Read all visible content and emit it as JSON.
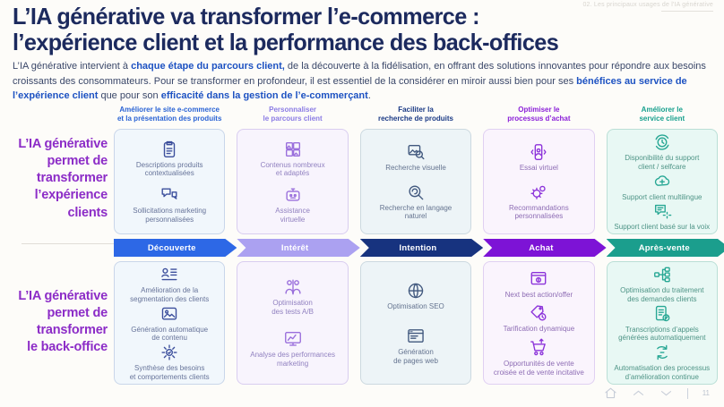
{
  "meta": {
    "header_note": "02. Les principaux usages de l'IA générative"
  },
  "title": "L’IA générative va transformer l’e-commerce :\nl’expérience client et la performance des back-offices",
  "intro": {
    "s1": "L’IA générative intervient à ",
    "b1": "chaque étape du parcours client,",
    "s2": " de la découverte à la fidélisation, en offrant des solutions innovantes pour répondre aux besoins croissants des consommateurs. Pour se transformer en profondeur, il est essentiel de la considérer en miroir aussi bien pour ses ",
    "b2": "bénéfices au service de l’expérience client",
    "s3": " que pour son ",
    "b3": "efficacité dans la gestion de l’e-commerçant",
    "s4": "."
  },
  "left_labels": {
    "experience": "L’IA générative\npermet de\ntransformer\nl’expérience\nclients",
    "backoffice": "L’IA générative\npermet de\ntransformer\nle back-office"
  },
  "palette": {
    "title": "#1c2a5e",
    "intro_bold_blue": "#1d52c2",
    "label_purple": "#8c2cc7"
  },
  "columns": [
    {
      "header": "Améliorer le site e-commerce\net la présentation des produits",
      "arrow": "Découverte",
      "colors": {
        "header": "#2a63d4",
        "icon": "#3c4f9c",
        "arrow": "#2d68e6",
        "bg": "#f1f7fc",
        "border": "#c9d6ea",
        "text": "#667399"
      },
      "top": {
        "items": [
          {
            "icon": "clipboard",
            "label": "Descriptions produits\ncontextualisées"
          },
          {
            "icon": "chat-bubbles",
            "label": "Sollicitations marketing\npersonnalisées"
          }
        ]
      },
      "bottom": {
        "items": [
          {
            "icon": "segmentation",
            "label": "Amélioration de la\nsegmentation des clients"
          },
          {
            "icon": "content-gen",
            "label": "Génération automatique\nde contenu"
          },
          {
            "icon": "synthesis",
            "label": "Synthèse des besoins\net comportements clients"
          }
        ]
      }
    },
    {
      "header": "Personnaliser\nle parcours client",
      "arrow": "Intérêt",
      "colors": {
        "header": "#8b7ce4",
        "icon": "#9a6fdc",
        "arrow": "#aba1f1",
        "bg": "#f8f4fd",
        "border": "#d9cdf0",
        "text": "#9181c0"
      },
      "top": {
        "items": [
          {
            "icon": "images-grid",
            "label": "Contenus nombreux\net adaptés"
          },
          {
            "icon": "robot",
            "label": "Assistance\nvirtuelle"
          }
        ]
      },
      "bottom": {
        "items": [
          {
            "icon": "ab-test",
            "label": "Optimisation\ndes tests A/B"
          },
          {
            "icon": "monitor-chart",
            "label": "Analyse des performances\nmarketing"
          }
        ]
      }
    },
    {
      "header": "Faciliter la\nrecherche de produits",
      "arrow": "Intention",
      "colors": {
        "header": "#1b3a85",
        "icon": "#41587e",
        "arrow": "#17337f",
        "bg": "#edf4f7",
        "border": "#ccd9e0",
        "text": "#64738f"
      },
      "top": {
        "items": [
          {
            "icon": "image-search",
            "label": "Recherche visuelle"
          },
          {
            "icon": "nlp-search",
            "label": "Recherche en langage\nnaturel"
          }
        ]
      },
      "bottom": {
        "items": [
          {
            "icon": "globe-seo",
            "label": "Optimisation SEO"
          },
          {
            "icon": "webpage",
            "label": "Génération\nde pages web"
          }
        ]
      }
    },
    {
      "header": "Optimiser le\nprocessus d’achat",
      "arrow": "Achat",
      "colors": {
        "header": "#8a1ed8",
        "icon": "#8c33da",
        "arrow": "#7d13d6",
        "bg": "#faf4fd",
        "border": "#e0d0f2",
        "text": "#8d6cb4"
      },
      "top": {
        "items": [
          {
            "icon": "phone-person",
            "label": "Essai virtuel"
          },
          {
            "icon": "gear-person",
            "label": "Recommandations\npersonnalisées"
          }
        ]
      },
      "bottom": {
        "items": [
          {
            "icon": "next-best",
            "label": "Next best action/offer"
          },
          {
            "icon": "dynamic-pricing",
            "label": "Tarification dynamique"
          },
          {
            "icon": "cart",
            "label": "Opportunités de vente\ncroisée et de vente incitative"
          }
        ]
      }
    },
    {
      "header": "Améliorer le\nservice client",
      "arrow": "Après-vente",
      "colors": {
        "header": "#18a08e",
        "icon": "#27a794",
        "arrow": "#1b9e8d",
        "bg": "#e8f8f4",
        "border": "#badfd6",
        "text": "#4e9486"
      },
      "top": {
        "items": [
          {
            "icon": "availability-clock",
            "label": "Disponibilité du support\nclient / selfcare"
          },
          {
            "icon": "multilingual-brain",
            "label": "Support client multilingue"
          },
          {
            "icon": "voice-support",
            "label": "Support client basé sur la voix"
          }
        ]
      },
      "bottom": {
        "items": [
          {
            "icon": "routing",
            "label": "Optimisation du traitement\ndes demandes clients"
          },
          {
            "icon": "transcript",
            "label": "Transcriptions d’appels\ngénérées automatiquement"
          },
          {
            "icon": "process-loop",
            "label": "Automatisation des processus\nd’amélioration continue"
          }
        ]
      }
    }
  ],
  "nav": {
    "page": "11"
  }
}
